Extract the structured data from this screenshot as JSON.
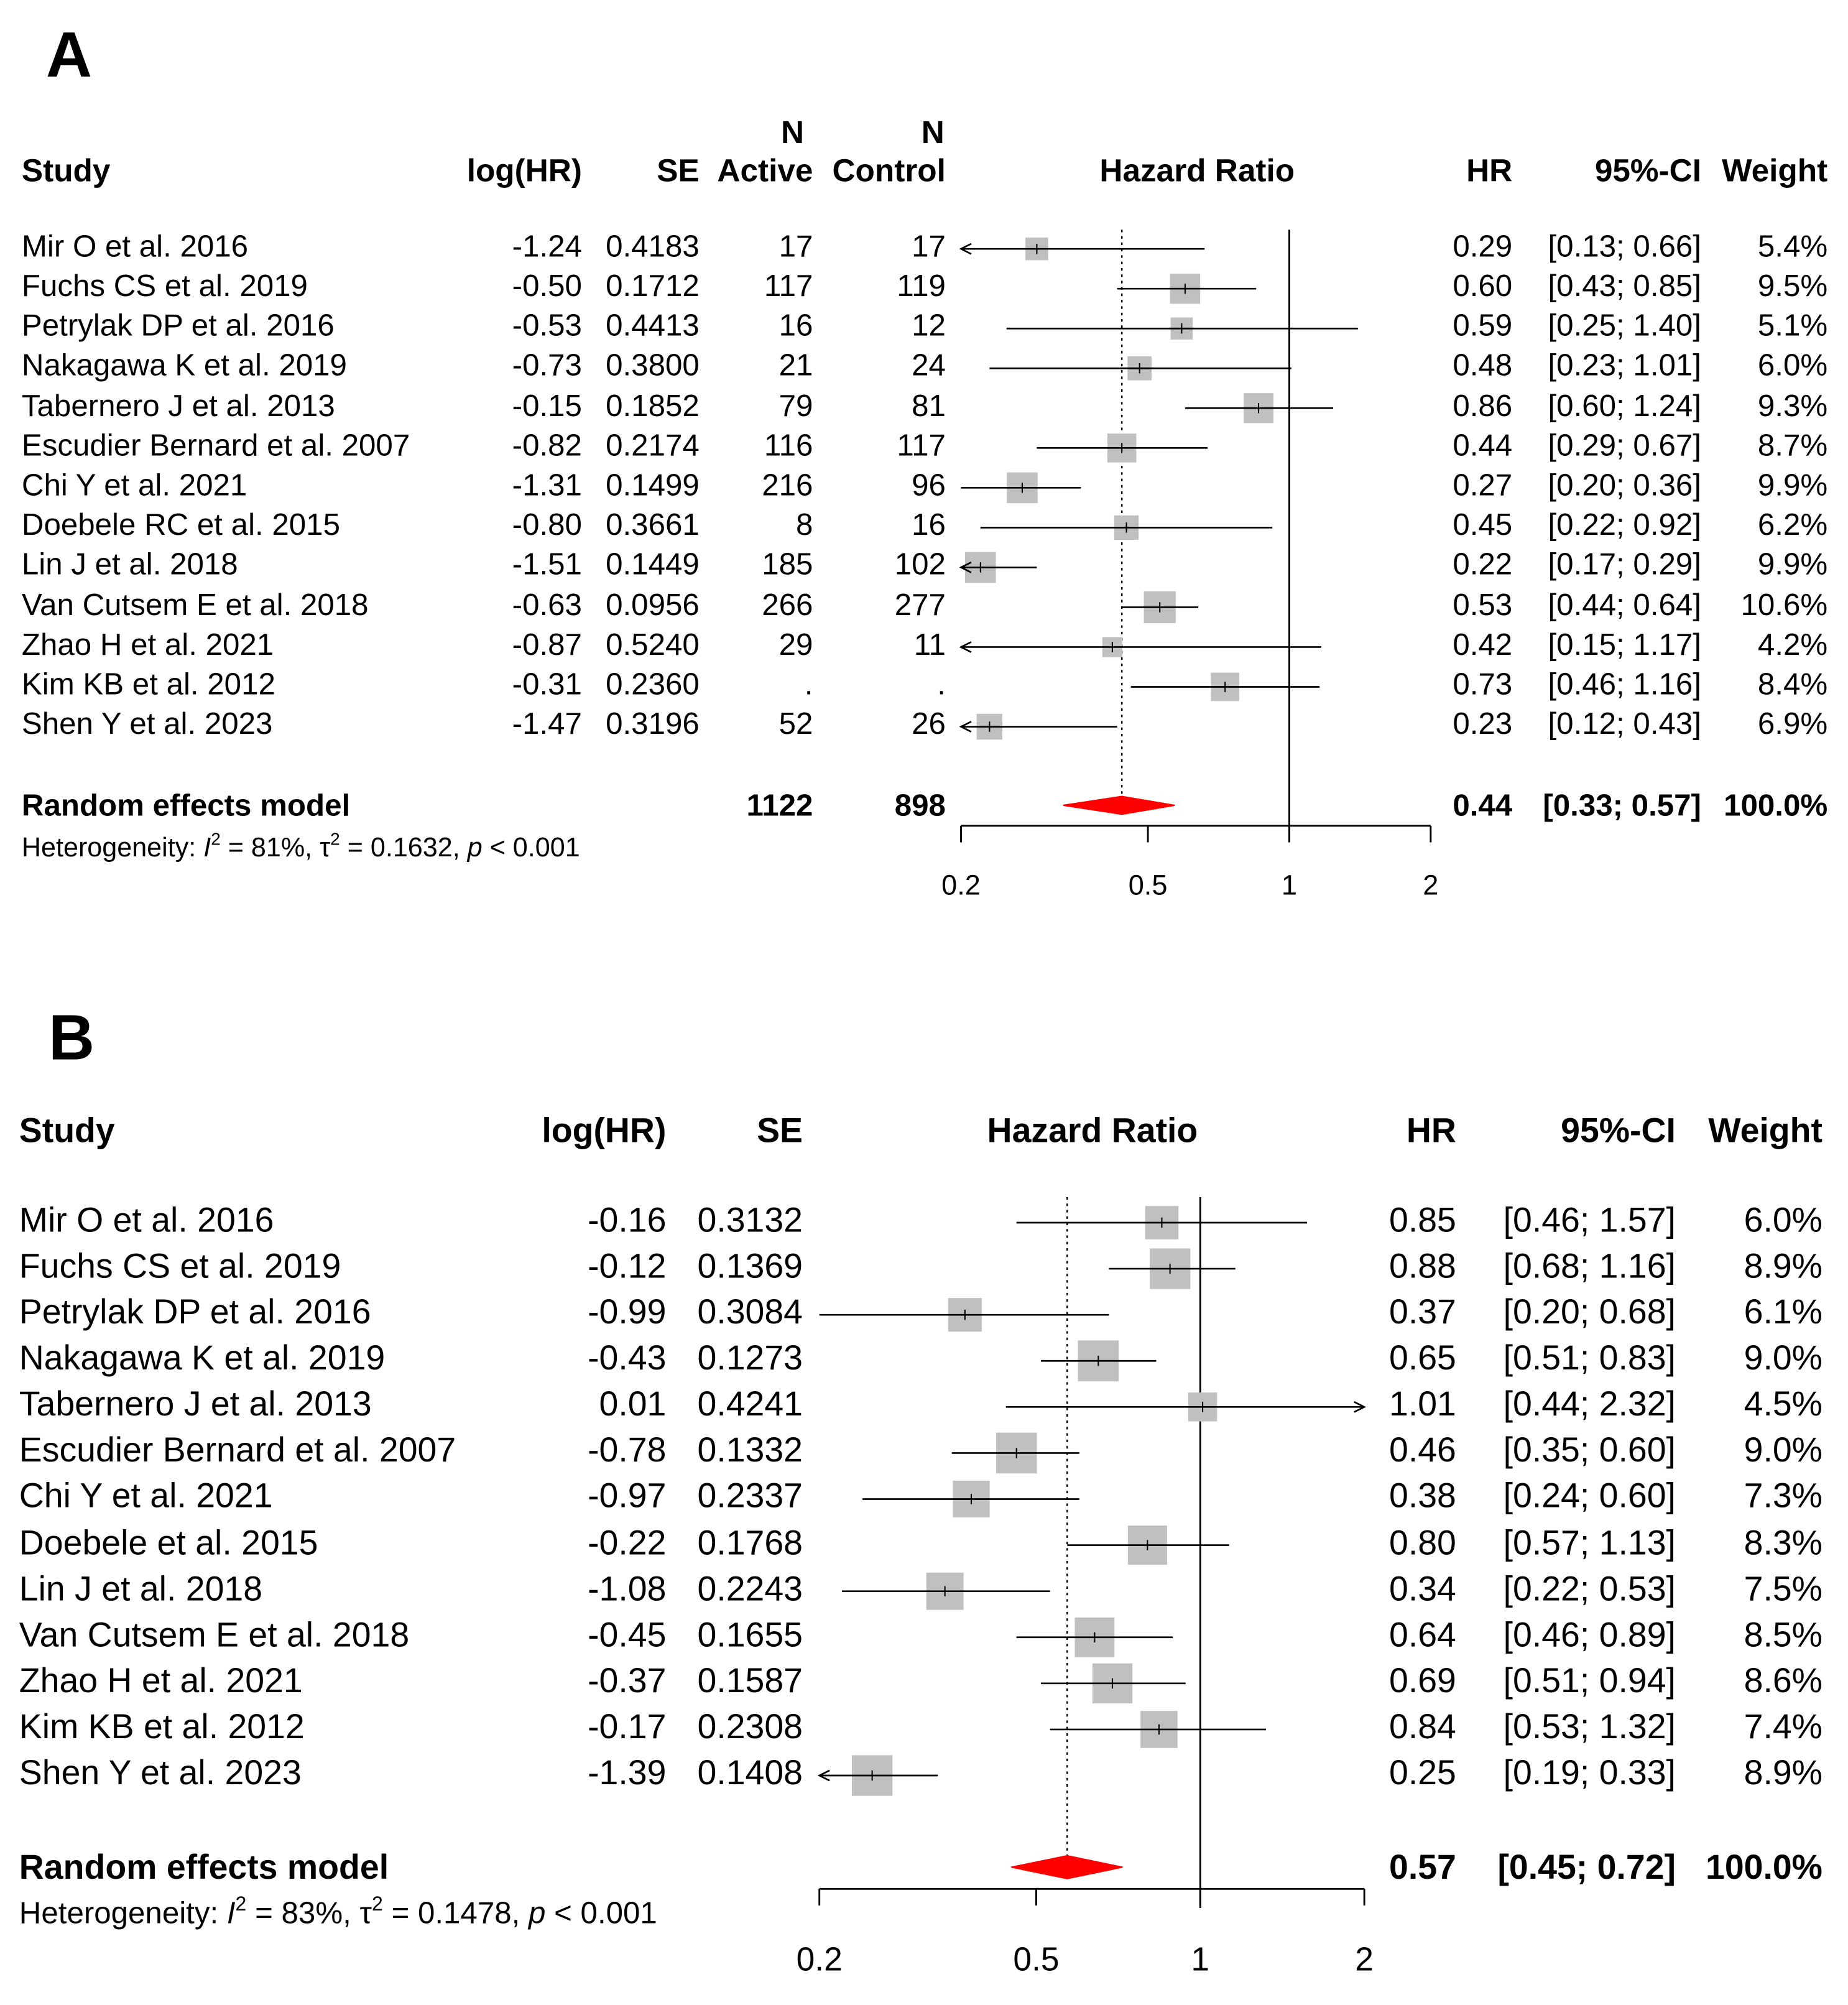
{
  "panels": [
    {
      "label": "A",
      "headers": {
        "study": "Study",
        "loghr": "log(HR)",
        "se": "SE",
        "n_active_top": "N",
        "n_active": "Active",
        "n_control_top": "N",
        "n_control": "Control",
        "plot": "Hazard Ratio",
        "hr": "HR",
        "ci": "95%-CI",
        "weight": "Weight"
      },
      "summary": {
        "label": "Random effects model",
        "n_active": "1122",
        "n_control": "898",
        "hr": "0.44",
        "ci": "[0.33; 0.57]",
        "weight": "100.0%"
      },
      "heterogeneity": {
        "prefix": "Heterogeneity: ",
        "i2": "I",
        "i2_value": " = 81%, ",
        "tau": "τ",
        "tau_value": " = 0.1632, ",
        "p": "p",
        "p_value": " < 0.001"
      }
    },
    {
      "label": "B",
      "headers": {
        "study": "Study",
        "loghr": "log(HR)",
        "se": "SE",
        "plot": "Hazard Ratio",
        "hr": "HR",
        "ci": "95%-CI",
        "weight": "Weight"
      },
      "summary": {
        "label": "Random effects model",
        "hr": "0.57",
        "ci": "[0.45; 0.72]",
        "weight": "100.0%"
      },
      "heterogeneity": {
        "prefix": "Heterogeneity: ",
        "i2": "I",
        "i2_value": " = 83%, ",
        "tau": "τ",
        "tau_value": " = 0.1478, ",
        "p": "p",
        "p_value": " < 0.001"
      }
    }
  ],
  "colors": {
    "square": "#c0c0c0",
    "diamond": "#ff0000",
    "line": "#000000"
  },
  "chart_data": [
    {
      "type": "forest",
      "panel": "A",
      "title": "Hazard Ratio",
      "xscale": "log",
      "xlim": [
        0.2,
        2
      ],
      "ticks": [
        "0.2",
        "0.5",
        "1",
        "2"
      ],
      "null_line": 1,
      "pooled_line": 0.44,
      "studies": [
        {
          "study": "Mir O et al. 2016",
          "loghr": "-1.24",
          "se": "0.4183",
          "n_active": "17",
          "n_control": "17",
          "hr": 0.29,
          "lo": 0.13,
          "hi": 0.66,
          "hr_s": "0.29",
          "ci_s": "[0.13; 0.66]",
          "weight": 5.4,
          "weight_s": "5.4%"
        },
        {
          "study": "Fuchs CS et al. 2019",
          "loghr": "-0.50",
          "se": "0.1712",
          "n_active": "117",
          "n_control": "119",
          "hr": 0.6,
          "lo": 0.43,
          "hi": 0.85,
          "hr_s": "0.60",
          "ci_s": "[0.43; 0.85]",
          "weight": 9.5,
          "weight_s": "9.5%"
        },
        {
          "study": "Petrylak DP et al. 2016",
          "loghr": "-0.53",
          "se": "0.4413",
          "n_active": "16",
          "n_control": "12",
          "hr": 0.59,
          "lo": 0.25,
          "hi": 1.4,
          "hr_s": "0.59",
          "ci_s": "[0.25; 1.40]",
          "weight": 5.1,
          "weight_s": "5.1%"
        },
        {
          "study": "Nakagawa K et al. 2019",
          "loghr": "-0.73",
          "se": "0.3800",
          "n_active": "21",
          "n_control": "24",
          "hr": 0.48,
          "lo": 0.23,
          "hi": 1.01,
          "hr_s": "0.48",
          "ci_s": "[0.23; 1.01]",
          "weight": 6.0,
          "weight_s": "6.0%"
        },
        {
          "study": "Tabernero J et al. 2013",
          "loghr": "-0.15",
          "se": "0.1852",
          "n_active": "79",
          "n_control": "81",
          "hr": 0.86,
          "lo": 0.6,
          "hi": 1.24,
          "hr_s": "0.86",
          "ci_s": "[0.60; 1.24]",
          "weight": 9.3,
          "weight_s": "9.3%"
        },
        {
          "study": "Escudier Bernard et al. 2007",
          "loghr": "-0.82",
          "se": "0.2174",
          "n_active": "116",
          "n_control": "117",
          "hr": 0.44,
          "lo": 0.29,
          "hi": 0.67,
          "hr_s": "0.44",
          "ci_s": "[0.29; 0.67]",
          "weight": 8.7,
          "weight_s": "8.7%"
        },
        {
          "study": "Chi Y et al. 2021",
          "loghr": "-1.31",
          "se": "0.1499",
          "n_active": "216",
          "n_control": "96",
          "hr": 0.27,
          "lo": 0.2,
          "hi": 0.36,
          "hr_s": "0.27",
          "ci_s": "[0.20; 0.36]",
          "weight": 9.9,
          "weight_s": "9.9%"
        },
        {
          "study": "Doebele RC et al. 2015",
          "loghr": "-0.80",
          "se": "0.3661",
          "n_active": "8",
          "n_control": "16",
          "hr": 0.45,
          "lo": 0.22,
          "hi": 0.92,
          "hr_s": "0.45",
          "ci_s": "[0.22; 0.92]",
          "weight": 6.2,
          "weight_s": "6.2%"
        },
        {
          "study": "Lin J et al. 2018",
          "loghr": "-1.51",
          "se": "0.1449",
          "n_active": "185",
          "n_control": "102",
          "hr": 0.22,
          "lo": 0.17,
          "hi": 0.29,
          "hr_s": "0.22",
          "ci_s": "[0.17; 0.29]",
          "weight": 9.9,
          "weight_s": "9.9%"
        },
        {
          "study": "Van Cutsem E et al. 2018",
          "loghr": "-0.63",
          "se": "0.0956",
          "n_active": "266",
          "n_control": "277",
          "hr": 0.53,
          "lo": 0.44,
          "hi": 0.64,
          "hr_s": "0.53",
          "ci_s": "[0.44; 0.64]",
          "weight": 10.6,
          "weight_s": "10.6%"
        },
        {
          "study": "Zhao H et al. 2021",
          "loghr": "-0.87",
          "se": "0.5240",
          "n_active": "29",
          "n_control": "11",
          "hr": 0.42,
          "lo": 0.15,
          "hi": 1.17,
          "hr_s": "0.42",
          "ci_s": "[0.15; 1.17]",
          "weight": 4.2,
          "weight_s": "4.2%"
        },
        {
          "study": "Kim KB et al. 2012",
          "loghr": "-0.31",
          "se": "0.2360",
          "n_active": ".",
          "n_control": ".",
          "hr": 0.73,
          "lo": 0.46,
          "hi": 1.16,
          "hr_s": "0.73",
          "ci_s": "[0.46; 1.16]",
          "weight": 8.4,
          "weight_s": "8.4%"
        },
        {
          "study": "Shen Y et al. 2023",
          "loghr": "-1.47",
          "se": "0.3196",
          "n_active": "52",
          "n_control": "26",
          "hr": 0.23,
          "lo": 0.12,
          "hi": 0.43,
          "hr_s": "0.23",
          "ci_s": "[0.12; 0.43]",
          "weight": 6.9,
          "weight_s": "6.9%"
        }
      ],
      "pooled": {
        "hr": 0.44,
        "lo": 0.33,
        "hi": 0.57
      }
    },
    {
      "type": "forest",
      "panel": "B",
      "title": "Hazard Ratio",
      "xscale": "log",
      "xlim": [
        0.2,
        2
      ],
      "ticks": [
        "0.2",
        "0.5",
        "1",
        "2"
      ],
      "null_line": 1,
      "pooled_line": 0.57,
      "studies": [
        {
          "study": "Mir O et al. 2016",
          "loghr": "-0.16",
          "se": "0.3132",
          "hr": 0.85,
          "lo": 0.46,
          "hi": 1.57,
          "hr_s": "0.85",
          "ci_s": "[0.46; 1.57]",
          "weight": 6.0,
          "weight_s": "6.0%"
        },
        {
          "study": "Fuchs CS et al. 2019",
          "loghr": "-0.12",
          "se": "0.1369",
          "hr": 0.88,
          "lo": 0.68,
          "hi": 1.16,
          "hr_s": "0.88",
          "ci_s": "[0.68; 1.16]",
          "weight": 8.9,
          "weight_s": "8.9%"
        },
        {
          "study": "Petrylak DP et al. 2016",
          "loghr": "-0.99",
          "se": "0.3084",
          "hr": 0.37,
          "lo": 0.2,
          "hi": 0.68,
          "hr_s": "0.37",
          "ci_s": "[0.20; 0.68]",
          "weight": 6.1,
          "weight_s": "6.1%"
        },
        {
          "study": "Nakagawa K et al. 2019",
          "loghr": "-0.43",
          "se": "0.1273",
          "hr": 0.65,
          "lo": 0.51,
          "hi": 0.83,
          "hr_s": "0.65",
          "ci_s": "[0.51; 0.83]",
          "weight": 9.0,
          "weight_s": "9.0%"
        },
        {
          "study": "Tabernero J et al. 2013",
          "loghr": "0.01",
          "se": "0.4241",
          "hr": 1.01,
          "lo": 0.44,
          "hi": 2.32,
          "hr_s": "1.01",
          "ci_s": "[0.44; 2.32]",
          "weight": 4.5,
          "weight_s": "4.5%"
        },
        {
          "study": "Escudier Bernard et al. 2007",
          "loghr": "-0.78",
          "se": "0.1332",
          "hr": 0.46,
          "lo": 0.35,
          "hi": 0.6,
          "hr_s": "0.46",
          "ci_s": "[0.35; 0.60]",
          "weight": 9.0,
          "weight_s": "9.0%"
        },
        {
          "study": "Chi Y et al. 2021",
          "loghr": "-0.97",
          "se": "0.2337",
          "hr": 0.38,
          "lo": 0.24,
          "hi": 0.6,
          "hr_s": "0.38",
          "ci_s": "[0.24; 0.60]",
          "weight": 7.3,
          "weight_s": "7.3%"
        },
        {
          "study": "Doebele et al. 2015",
          "loghr": "-0.22",
          "se": "0.1768",
          "hr": 0.8,
          "lo": 0.57,
          "hi": 1.13,
          "hr_s": "0.80",
          "ci_s": "[0.57; 1.13]",
          "weight": 8.3,
          "weight_s": "8.3%"
        },
        {
          "study": "Lin J et al. 2018",
          "loghr": "-1.08",
          "se": "0.2243",
          "hr": 0.34,
          "lo": 0.22,
          "hi": 0.53,
          "hr_s": "0.34",
          "ci_s": "[0.22; 0.53]",
          "weight": 7.5,
          "weight_s": "7.5%"
        },
        {
          "study": "Van Cutsem E et al. 2018",
          "loghr": "-0.45",
          "se": "0.1655",
          "hr": 0.64,
          "lo": 0.46,
          "hi": 0.89,
          "hr_s": "0.64",
          "ci_s": "[0.46; 0.89]",
          "weight": 8.5,
          "weight_s": "8.5%"
        },
        {
          "study": "Zhao H et al. 2021",
          "loghr": "-0.37",
          "se": "0.1587",
          "hr": 0.69,
          "lo": 0.51,
          "hi": 0.94,
          "hr_s": "0.69",
          "ci_s": "[0.51; 0.94]",
          "weight": 8.6,
          "weight_s": "8.6%"
        },
        {
          "study": "Kim KB et al. 2012",
          "loghr": "-0.17",
          "se": "0.2308",
          "hr": 0.84,
          "lo": 0.53,
          "hi": 1.32,
          "hr_s": "0.84",
          "ci_s": "[0.53; 1.32]",
          "weight": 7.4,
          "weight_s": "7.4%"
        },
        {
          "study": "Shen Y et al. 2023",
          "loghr": "-1.39",
          "se": "0.1408",
          "hr": 0.25,
          "lo": 0.19,
          "hi": 0.33,
          "hr_s": "0.25",
          "ci_s": "[0.19; 0.33]",
          "weight": 8.9,
          "weight_s": "8.9%"
        }
      ],
      "pooled": {
        "hr": 0.57,
        "lo": 0.45,
        "hi": 0.72
      }
    }
  ]
}
